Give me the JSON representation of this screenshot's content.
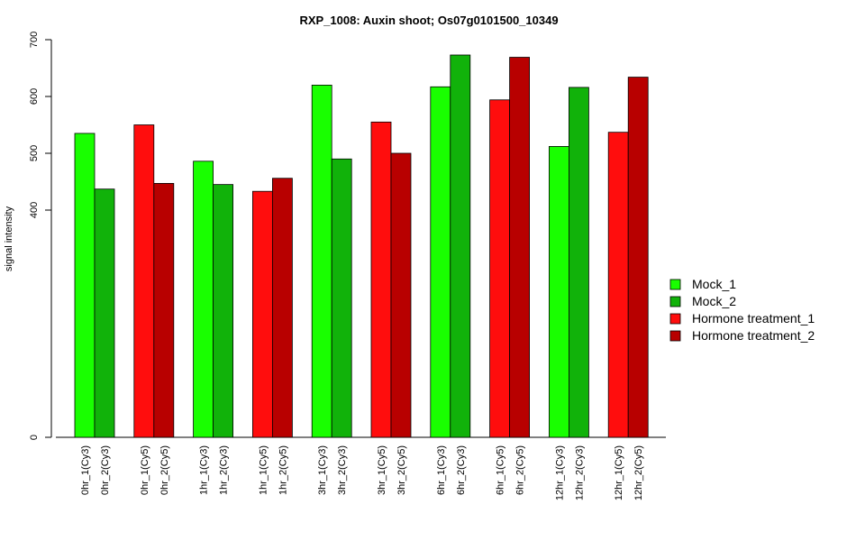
{
  "chart_data": {
    "type": "bar",
    "title": "RXP_1008: Auxin shoot; Os07g0101500_10349",
    "ylabel": "signal intensity",
    "xlabel": "",
    "ylim": [
      0,
      700
    ],
    "yticks": [
      0,
      400,
      500,
      600,
      700
    ],
    "categories": [
      "0hr_1(Cy3)",
      "0hr_2(Cy3)",
      "0hr_1(Cy5)",
      "0hr_2(Cy5)",
      "1hr_1(Cy3)",
      "1hr_2(Cy3)",
      "1hr_1(Cy5)",
      "1hr_2(Cy5)",
      "3hr_1(Cy3)",
      "3hr_2(Cy3)",
      "3hr_1(Cy5)",
      "3hr_2(Cy5)",
      "6hr_1(Cy3)",
      "6hr_2(Cy3)",
      "6hr_1(Cy5)",
      "6hr_2(Cy5)",
      "12hr_1(Cy3)",
      "12hr_2(Cy3)",
      "12hr_1(Cy5)",
      "12hr_2(Cy5)"
    ],
    "values": [
      535,
      437,
      550,
      447,
      486,
      445,
      433,
      456,
      620,
      490,
      555,
      500,
      617,
      673,
      594,
      669,
      512,
      616,
      537,
      634
    ],
    "bar_series": [
      0,
      1,
      2,
      3,
      0,
      1,
      2,
      3,
      0,
      1,
      2,
      3,
      0,
      1,
      2,
      3,
      0,
      1,
      2,
      3
    ],
    "legend": [
      {
        "name": "Mock_1",
        "color": "#19ff00"
      },
      {
        "name": "Mock_2",
        "color": "#11b20a"
      },
      {
        "name": "Hormone treatment_1",
        "color": "#ff0d0d"
      },
      {
        "name": "Hormone treatment_2",
        "color": "#b80000"
      }
    ],
    "legend_position": "right",
    "grid": false
  }
}
